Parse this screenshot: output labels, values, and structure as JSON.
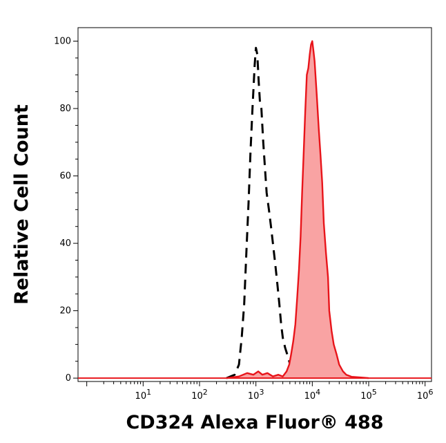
{
  "chart_data": {
    "type": "area",
    "title": "",
    "xlabel": "CD324 Alexa Fluor® 488",
    "ylabel": "Relative Cell Count",
    "xscale": "log",
    "xlim": [
      0.7,
      1300000
    ],
    "ylim": [
      -1,
      104
    ],
    "grid": false,
    "x_ticks": [
      {
        "value": 10,
        "base": "10",
        "exp": "1"
      },
      {
        "value": 100,
        "base": "10",
        "exp": "2"
      },
      {
        "value": 1000,
        "base": "10",
        "exp": "3"
      },
      {
        "value": 10000,
        "base": "10",
        "exp": "4"
      },
      {
        "value": 100000,
        "base": "10",
        "exp": "5"
      },
      {
        "value": 1000000,
        "base": "10",
        "exp": "6"
      }
    ],
    "y_ticks": [
      {
        "value": 0,
        "label": "0"
      },
      {
        "value": 20,
        "label": "20"
      },
      {
        "value": 40,
        "label": "40"
      },
      {
        "value": 60,
        "label": "60"
      },
      {
        "value": 80,
        "label": "80"
      },
      {
        "value": 100,
        "label": "100"
      }
    ],
    "series": [
      {
        "style": "dashed",
        "color": "#000000",
        "x": [
          300,
          420,
          500,
          560,
          620,
          680,
          740,
          800,
          870,
          950,
          1000,
          1060,
          1120,
          1180,
          1250,
          1350,
          1450,
          1550,
          1700,
          1850,
          2000,
          2200,
          2400,
          2600,
          2800,
          3000,
          3300,
          3600,
          3900,
          4200,
          4500,
          5000,
          5600,
          6300,
          7000,
          8000,
          9000,
          10000,
          12000,
          15000
        ],
        "y": [
          0,
          1,
          4,
          12,
          22,
          38,
          52,
          67,
          80,
          93,
          98,
          96,
          88,
          82,
          80,
          70,
          62,
          55,
          50,
          45,
          40,
          34,
          28,
          22,
          16,
          12,
          9,
          7,
          5,
          3,
          1.5,
          0.8,
          0.5,
          0.3,
          0.5,
          0.3,
          0.6,
          0.4,
          0.2,
          0
        ]
      },
      {
        "style": "filled",
        "color": "#e8141a",
        "fill": "#f9a3a3",
        "x": [
          300,
          500,
          700,
          900,
          1100,
          1300,
          1600,
          2000,
          2500,
          3000,
          3500,
          3900,
          4200,
          4600,
          5000,
          5400,
          5800,
          6200,
          6600,
          7000,
          7500,
          8000,
          8500,
          9000,
          9500,
          10000,
          10500,
          11000,
          12000,
          13000,
          14000,
          15000,
          16000,
          17500,
          19000,
          20000,
          22000,
          24000,
          27000,
          30000,
          35000,
          40000,
          50000,
          70000,
          100000
        ],
        "y": [
          0,
          0.5,
          1.5,
          1,
          2,
          1,
          1.5,
          0.5,
          1,
          0.5,
          2,
          4,
          7,
          11,
          16,
          24,
          32,
          42,
          55,
          66,
          79,
          90,
          92,
          96,
          99,
          100,
          97,
          94,
          84,
          74,
          66,
          58,
          46,
          37,
          30,
          20,
          14,
          10,
          7,
          4,
          2,
          1,
          0.4,
          0.2,
          0
        ]
      }
    ]
  }
}
